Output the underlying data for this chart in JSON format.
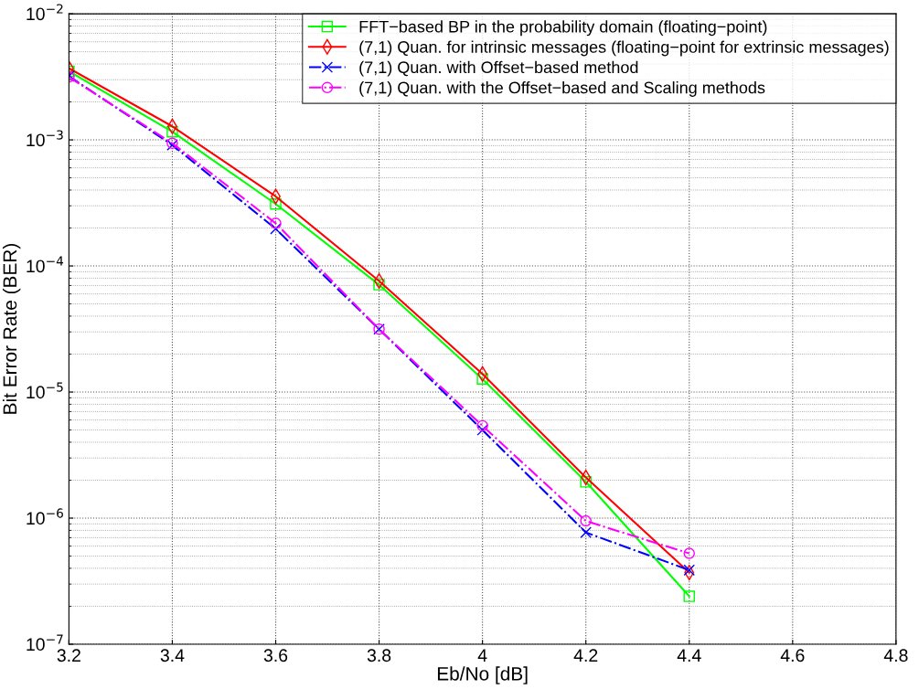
{
  "chart_data": {
    "type": "line",
    "xlabel": "Eb/No [dB]",
    "ylabel": "Bit Error Rate (BER)",
    "x": [
      3.2,
      3.4,
      3.6,
      3.8,
      4.0,
      4.2,
      4.4
    ],
    "xlim": [
      3.2,
      4.8
    ],
    "xticks": [
      3.2,
      3.4,
      3.6,
      3.8,
      4,
      4.2,
      4.4,
      4.6,
      4.8
    ],
    "ylim": [
      1e-07,
      0.01
    ],
    "yticks": [
      {
        "value": 1e-07,
        "label": "10$^{−7}$"
      },
      {
        "value": 1e-06,
        "label": "10$^{−6}$"
      },
      {
        "value": 1e-05,
        "label": "10$^{−5}$"
      },
      {
        "value": 0.0001,
        "label": "10$^{−4}$"
      },
      {
        "value": 0.001,
        "label": "10$^{−3}$"
      },
      {
        "value": 0.01,
        "label": "10$^{−2}$"
      }
    ],
    "log": "y",
    "grid": true,
    "legend": "top right",
    "series": [
      {
        "name": "FFT−based BP in the probability domain (floating−point)",
        "color": "#00ff00",
        "marker": "square",
        "line_style": "solid",
        "values": [
          0.0035,
          0.00116,
          0.00031,
          7.1e-05,
          1.27e-05,
          1.94e-06,
          2.4e-07
        ]
      },
      {
        "name": "(7,1) Quan. for intrinsic messages (floating−point for extrinsic messages)",
        "color": "#ff0000",
        "marker": "diamond",
        "line_style": "solid",
        "values": [
          0.0037,
          0.00128,
          0.000356,
          7.6e-05,
          1.39e-05,
          2.1e-06,
          3.7e-07
        ]
      },
      {
        "name": "(7,1) Quan. with Offset−based method",
        "color": "#0000ff",
        "marker": "cross",
        "line_style": "dashdot",
        "values": [
          0.0032,
          0.00091,
          0.000197,
          3.15e-05,
          5e-06,
          7.7e-07,
          3.87e-07
        ]
      },
      {
        "name": "(7,1) Quan. with the Offset−based and Scaling methods",
        "color": "#ff00ff",
        "marker": "circle",
        "line_style": "dashdot",
        "values": [
          0.00315,
          0.00094,
          0.000218,
          3.15e-05,
          5.4e-06,
          9.5e-07,
          5.25e-07
        ]
      }
    ]
  }
}
